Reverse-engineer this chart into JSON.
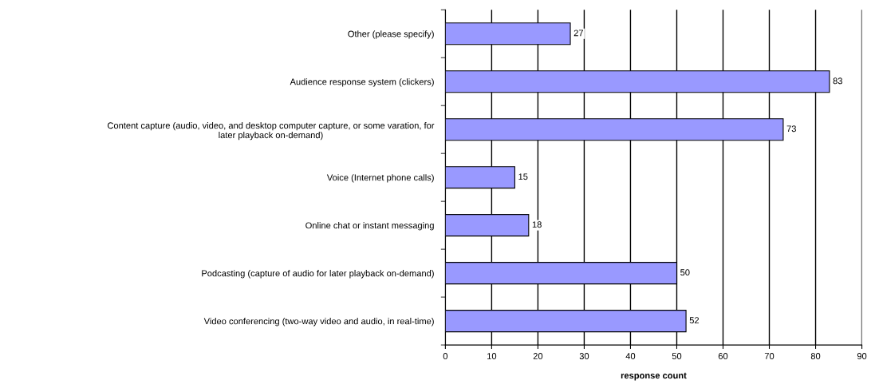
{
  "chart_data": {
    "type": "bar",
    "orientation": "horizontal",
    "xlabel": "response count",
    "categories": [
      "Other (please specify)",
      "Audience response system (clickers)",
      "Content capture (audio, video, and desktop computer capture, or some varation, for\nlater playback on-demand)",
      "Voice (Internet phone calls)",
      "Online chat or instant messaging",
      "Podcasting (capture of audio for later playback on-demand)",
      "Video conferencing (two-way video and audio, in real-time)"
    ],
    "values": [
      27,
      83,
      73,
      15,
      18,
      50,
      52
    ],
    "color": "#9999ff",
    "xlim": [
      0,
      90
    ],
    "xticks": [
      0,
      10,
      20,
      30,
      40,
      50,
      60,
      70,
      80,
      90
    ],
    "grid": "x",
    "data_labels": true
  }
}
